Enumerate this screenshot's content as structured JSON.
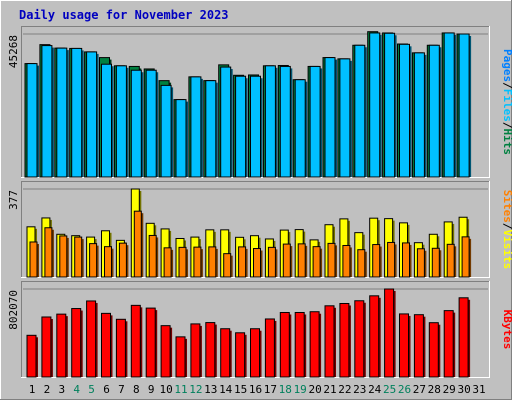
{
  "colors": {
    "background": "#c0c0c0",
    "title": "#0000c0",
    "pages": "#0080ff",
    "files": "#00c0ff",
    "hits": "#008040",
    "visits": "#ffff00",
    "sites": "#ff8000",
    "kbytes": "#ff0000",
    "weekend_day": "#00805c",
    "weekday": "#000000"
  },
  "chart_data": {
    "type": "bar",
    "title": "Daily usage for November 2023",
    "categories": [
      "1",
      "2",
      "3",
      "4",
      "5",
      "6",
      "7",
      "8",
      "9",
      "10",
      "11",
      "12",
      "13",
      "14",
      "15",
      "16",
      "17",
      "18",
      "19",
      "20",
      "21",
      "22",
      "23",
      "24",
      "25",
      "26",
      "27",
      "28",
      "29",
      "30",
      "31"
    ],
    "weekend_days": [
      "4",
      "5",
      "11",
      "12",
      "18",
      "19",
      "25",
      "26"
    ],
    "days_with_data": 30,
    "panels": [
      {
        "name": "hits-files-pages",
        "max_label": "45268",
        "ymax": 45268,
        "legend": [
          "Pages",
          "/",
          "Files",
          "/",
          "Hits"
        ],
        "series": [
          {
            "name": "Hits",
            "values": [
              35900,
              41900,
              40800,
              40700,
              39600,
              37800,
              35200,
              35000,
              34200,
              30500,
              24500,
              31700,
              30500,
              35500,
              32200,
              32300,
              35200,
              35300,
              30800,
              35000,
              37800,
              37400,
              41700,
              46000,
              45600,
              42100,
              39300,
              41700,
              45600,
              45268
            ]
          },
          {
            "name": "Files",
            "values": [
              35900,
              41600,
              40800,
              40700,
              39600,
              35700,
              35200,
              33800,
              33800,
              29000,
              24500,
              31700,
              30500,
              34800,
              31900,
              31900,
              35200,
              35000,
              30800,
              35000,
              37800,
              37400,
              41700,
              45600,
              45500,
              42000,
              39300,
              41700,
              45600,
              45268
            ]
          },
          {
            "name": "Pages",
            "values": [
              0,
              0,
              0,
              0,
              0,
              0,
              0,
              0,
              0,
              0,
              0,
              0,
              0,
              0,
              0,
              0,
              0,
              0,
              0,
              0,
              0,
              0,
              0,
              0,
              0,
              0,
              0,
              0,
              0,
              0
            ]
          }
        ]
      },
      {
        "name": "visits-sites",
        "max_label": "377",
        "ymax": 377,
        "legend": [
          "Sites",
          "/",
          "Visits"
        ],
        "series": [
          {
            "name": "Visits",
            "values": [
              215,
              253,
              183,
              177,
              171,
              198,
              157,
              377,
              230,
              206,
              165,
              171,
              202,
              202,
              170,
              177,
              163,
              201,
              203,
              159,
              224,
              249,
              190,
              252,
              250,
              232,
              147,
              183,
              236,
              256
            ]
          },
          {
            "name": "Sites",
            "values": [
              150,
              211,
              176,
              171,
              143,
              130,
              145,
              282,
              178,
              125,
              127,
              128,
              129,
              100,
              129,
              122,
              127,
              141,
              142,
              130,
              144,
              135,
              117,
              139,
              148,
              146,
              121,
              123,
              140,
              172
            ]
          }
        ]
      },
      {
        "name": "kbytes",
        "max_label": "802070",
        "ymax": 802070,
        "legend": [
          "KBytes"
        ],
        "series": [
          {
            "name": "KBytes",
            "values": [
              380000,
              547000,
              573000,
              624000,
              693000,
              580000,
              526000,
              653000,
              628000,
              468000,
              366000,
              484000,
              496000,
              440000,
              403000,
              440000,
              529000,
              588000,
              588000,
              595000,
              649000,
              670000,
              695000,
              740000,
              802070,
              575000,
              568000,
              495000,
              605000,
              722000
            ]
          }
        ]
      }
    ]
  }
}
